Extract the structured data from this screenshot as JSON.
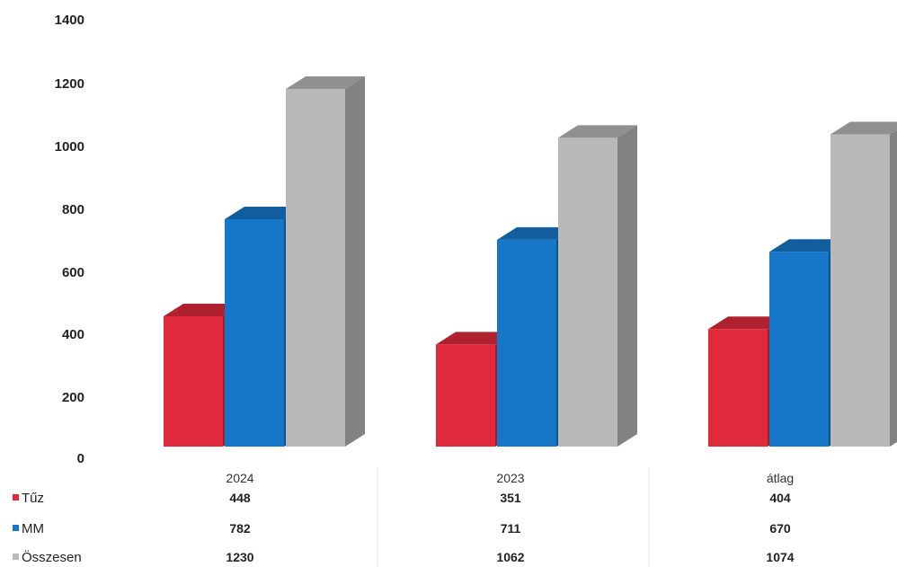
{
  "chart_data": {
    "type": "bar",
    "categories": [
      "2024",
      "2023",
      "átlag"
    ],
    "series": [
      {
        "name": "Tűz",
        "values": [
          448,
          351,
          404
        ],
        "color": "#e02a3b"
      },
      {
        "name": "MM",
        "values": [
          782,
          711,
          670
        ],
        "color": "#1677c9"
      },
      {
        "name": "Összesen",
        "values": [
          1230,
          1062,
          1074
        ],
        "color": "#b9b9b9"
      }
    ],
    "y_ticks": [
      "0",
      "200",
      "400",
      "600",
      "800",
      "1000",
      "1200",
      "1400"
    ],
    "ylim": [
      0,
      1400
    ],
    "title": "",
    "xlabel": "",
    "ylabel": "",
    "grid": false,
    "legend": "data-table-left",
    "style": "3d-columns"
  }
}
